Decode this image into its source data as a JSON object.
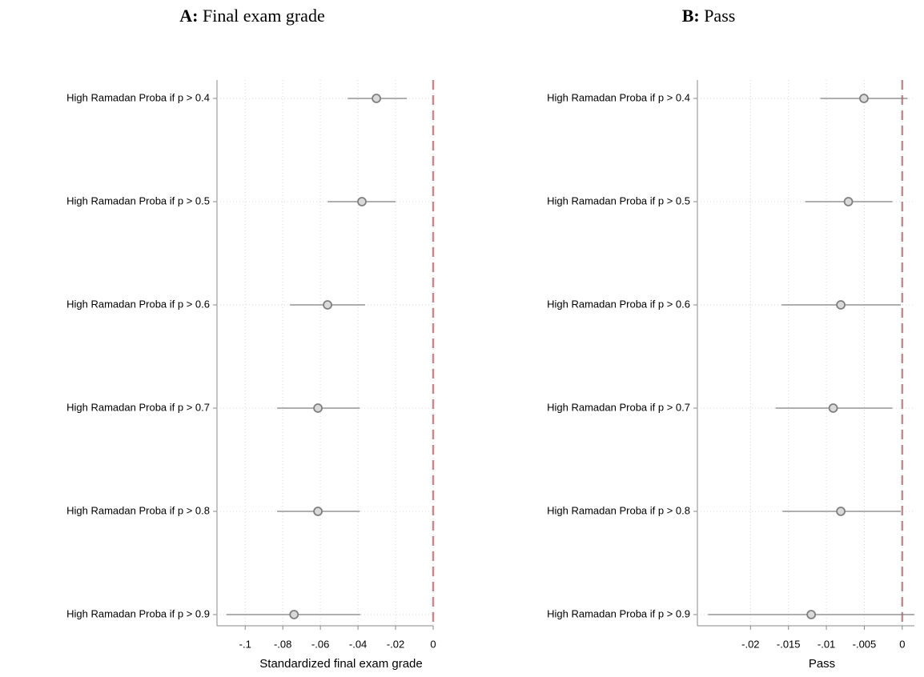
{
  "chart_data": [
    {
      "type": "coefplot",
      "panel": "A:",
      "title": "Final exam grade",
      "xlabel": "Standardized final exam grade",
      "categories": [
        "High Ramadan Proba if p > 0.4",
        "High Ramadan Proba if p > 0.5",
        "High Ramadan Proba if p > 0.6",
        "High Ramadan Proba if p > 0.7",
        "High Ramadan Proba if p > 0.8",
        "High Ramadan Proba if p > 0.9"
      ],
      "values": [
        -0.0302,
        -0.0379,
        -0.0562,
        -0.0613,
        -0.0613,
        -0.074
      ],
      "ci_low": [
        -0.0455,
        -0.0562,
        -0.0762,
        -0.083,
        -0.083,
        -0.11
      ],
      "ci_high": [
        -0.014,
        -0.02,
        -0.0362,
        -0.039,
        -0.039,
        -0.0387
      ],
      "xlim": [
        -0.115,
        0
      ],
      "xticks": [
        {
          "value": -0.1,
          "label": "-.1"
        },
        {
          "value": -0.08,
          "label": "-.08"
        },
        {
          "value": -0.06,
          "label": "-.06"
        },
        {
          "value": -0.04,
          "label": "-.04"
        },
        {
          "value": -0.02,
          "label": "-.02"
        },
        0
      ],
      "refline": 0,
      "refline_color": "#c48a8f",
      "color": "#7f7f7f",
      "grid": true
    },
    {
      "type": "coefplot",
      "panel": "B:",
      "title": "Pass",
      "xlabel": "Pass",
      "categories": [
        "High Ramadan Proba if p > 0.4",
        "High Ramadan Proba if p > 0.5",
        "High Ramadan Proba if p > 0.6",
        "High Ramadan Proba if p > 0.7",
        "High Ramadan Proba if p > 0.8",
        "High Ramadan Proba if p > 0.9"
      ],
      "values": [
        -0.00505,
        -0.0071,
        -0.0081,
        -0.0091,
        -0.0081,
        -0.012
      ],
      "ci_low": [
        -0.0108,
        -0.0128,
        -0.0159,
        -0.0167,
        -0.0158,
        -0.0256
      ],
      "ci_high": [
        0.0007,
        -0.0013,
        -0.0002,
        -0.0013,
        -0.0002,
        0.0016
      ],
      "xlim": [
        -0.027,
        0.0016
      ],
      "xticks": [
        {
          "value": -0.02,
          "label": "-.02"
        },
        {
          "value": -0.015,
          "label": "-.015"
        },
        {
          "value": -0.01,
          "label": "-.01"
        },
        {
          "value": -0.005,
          "label": "-.005"
        },
        0
      ],
      "refline": 0,
      "refline_color": "#c48a8f",
      "color": "#7f7f7f",
      "grid": true
    }
  ]
}
